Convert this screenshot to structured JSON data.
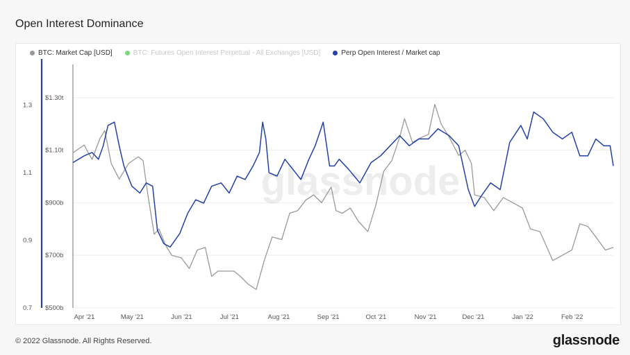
{
  "title": "Open Interest Dominance",
  "legend": [
    {
      "label": "BTC: Market Cap [USD]",
      "color": "#999999",
      "enabled": true
    },
    {
      "label": "BTC: Futures Open Interest Perpetual - All Exchanges [USD]",
      "color": "#7fd67f",
      "enabled": false
    },
    {
      "label": "Perp Open Interest / Market cap",
      "color": "#2340a6",
      "enabled": true
    }
  ],
  "watermark": "glassnode",
  "footer": {
    "copyright": "© 2022 Glassnode. All Rights Reserved.",
    "brand": "glassnode"
  },
  "chart_data": {
    "type": "line",
    "x_labels": [
      "Apr '21",
      "May '21",
      "Jun '21",
      "Jul '21",
      "Aug '21",
      "Sep '21",
      "Oct '21",
      "Nov '21",
      "Dec '21",
      "Jan '22",
      "Feb '22"
    ],
    "x_range": [
      "2021-03-27",
      "2022-03-01"
    ],
    "y_left_outer": {
      "ticks": [
        "1.3",
        "1.1",
        "0.9",
        "0.7"
      ],
      "values": [
        1.3,
        1.1,
        0.9,
        0.7
      ],
      "range": [
        0.7,
        1.4
      ]
    },
    "y_left_inner": {
      "ticks": [
        "$1.30t",
        "$1.10t",
        "$900b",
        "$700b",
        "$500b"
      ],
      "values": [
        1300,
        1100,
        900,
        700,
        500
      ],
      "range": [
        500,
        1400
      ]
    },
    "grid": true,
    "legend_position": "top-left",
    "series": [
      {
        "name": "BTC: Market Cap [USD]",
        "axis": "inner",
        "color": "#999999",
        "dates": [
          "2021-03-27",
          "2021-04-03",
          "2021-04-08",
          "2021-04-13",
          "2021-04-16",
          "2021-04-20",
          "2021-04-25",
          "2021-05-01",
          "2021-05-07",
          "2021-05-10",
          "2021-05-13",
          "2021-05-17",
          "2021-05-20",
          "2021-05-24",
          "2021-05-28",
          "2021-06-03",
          "2021-06-08",
          "2021-06-13",
          "2021-06-18",
          "2021-06-22",
          "2021-06-26",
          "2021-07-01",
          "2021-07-06",
          "2021-07-10",
          "2021-07-15",
          "2021-07-20",
          "2021-07-25",
          "2021-07-30",
          "2021-08-05",
          "2021-08-10",
          "2021-08-15",
          "2021-08-20",
          "2021-08-25",
          "2021-08-30",
          "2021-09-05",
          "2021-09-08",
          "2021-09-12",
          "2021-09-17",
          "2021-09-22",
          "2021-09-28",
          "2021-10-03",
          "2021-10-08",
          "2021-10-13",
          "2021-10-18",
          "2021-10-21",
          "2021-10-26",
          "2021-11-01",
          "2021-11-05",
          "2021-11-09",
          "2021-11-13",
          "2021-11-18",
          "2021-11-24",
          "2021-11-28",
          "2021-12-02",
          "2021-12-04",
          "2021-12-10",
          "2021-12-16",
          "2021-12-22",
          "2021-12-28",
          "2022-01-03",
          "2022-01-08",
          "2022-01-14",
          "2022-01-22",
          "2022-01-28",
          "2022-02-03",
          "2022-02-08",
          "2022-02-13",
          "2022-02-18",
          "2022-02-24",
          "2022-03-01"
        ],
        "values": [
          1090,
          1120,
          1065,
          1145,
          1175,
          1050,
          990,
          1050,
          1075,
          1060,
          930,
          780,
          800,
          740,
          700,
          690,
          650,
          720,
          730,
          620,
          640,
          640,
          640,
          620,
          590,
          570,
          680,
          770,
          760,
          860,
          870,
          910,
          930,
          900,
          960,
          870,
          860,
          880,
          830,
          790,
          890,
          1020,
          1060,
          1150,
          1220,
          1130,
          1150,
          1160,
          1275,
          1200,
          1150,
          1080,
          1100,
          1050,
          930,
          920,
          870,
          920,
          900,
          880,
          800,
          790,
          680,
          700,
          720,
          820,
          810,
          770,
          720,
          730
        ]
      },
      {
        "name": "Perp Open Interest / Market cap",
        "axis": "outer",
        "color": "#2340a6",
        "dates": [
          "2021-03-27",
          "2021-04-03",
          "2021-04-08",
          "2021-04-12",
          "2021-04-15",
          "2021-04-18",
          "2021-04-22",
          "2021-04-25",
          "2021-04-28",
          "2021-05-03",
          "2021-05-08",
          "2021-05-12",
          "2021-05-16",
          "2021-05-19",
          "2021-05-23",
          "2021-05-27",
          "2021-06-02",
          "2021-06-07",
          "2021-06-12",
          "2021-06-17",
          "2021-06-22",
          "2021-06-28",
          "2021-07-03",
          "2021-07-08",
          "2021-07-13",
          "2021-07-18",
          "2021-07-22",
          "2021-07-24",
          "2021-07-26",
          "2021-07-28",
          "2021-08-02",
          "2021-08-07",
          "2021-08-12",
          "2021-08-17",
          "2021-08-22",
          "2021-08-26",
          "2021-08-31",
          "2021-09-04",
          "2021-09-07",
          "2021-09-10",
          "2021-09-16",
          "2021-09-23",
          "2021-09-30",
          "2021-10-06",
          "2021-10-12",
          "2021-10-18",
          "2021-10-24",
          "2021-10-30",
          "2021-11-05",
          "2021-11-11",
          "2021-11-18",
          "2021-11-24",
          "2021-11-30",
          "2021-12-04",
          "2021-12-08",
          "2021-12-14",
          "2021-12-20",
          "2021-12-26",
          "2022-01-02",
          "2022-01-06",
          "2022-01-10",
          "2022-01-16",
          "2022-01-22",
          "2022-01-28",
          "2022-02-03",
          "2022-02-08",
          "2022-02-13",
          "2022-02-18",
          "2022-02-23",
          "2022-02-27",
          "2022-03-01"
        ],
        "values": [
          1.13,
          1.15,
          1.16,
          1.14,
          1.18,
          1.24,
          1.25,
          1.18,
          1.12,
          1.06,
          1.04,
          1.07,
          1.06,
          0.93,
          0.89,
          0.88,
          0.92,
          0.98,
          1.02,
          1.01,
          1.06,
          1.07,
          1.04,
          1.09,
          1.08,
          1.12,
          1.16,
          1.25,
          1.2,
          1.1,
          1.09,
          1.14,
          1.11,
          1.08,
          1.14,
          1.18,
          1.25,
          1.12,
          1.12,
          1.14,
          1.11,
          1.07,
          1.13,
          1.15,
          1.18,
          1.21,
          1.18,
          1.2,
          1.2,
          1.23,
          1.21,
          1.18,
          1.05,
          1.0,
          1.03,
          1.07,
          1.05,
          1.19,
          1.24,
          1.2,
          1.28,
          1.26,
          1.22,
          1.2,
          1.22,
          1.15,
          1.15,
          1.2,
          1.18,
          1.18,
          1.12
        ]
      }
    ]
  }
}
